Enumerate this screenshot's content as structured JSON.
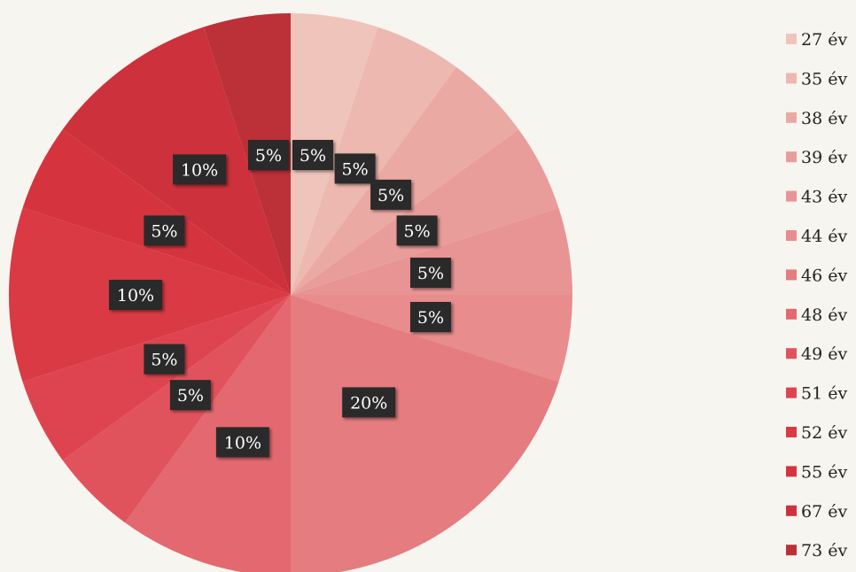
{
  "chart_data": {
    "type": "pie",
    "categories": [
      "27 év",
      "35 év",
      "38 év",
      "39 év",
      "43 év",
      "44 év",
      "46 év",
      "48 év",
      "49 év",
      "51 év",
      "52 év",
      "55 év",
      "67 év",
      "73 év"
    ],
    "values": [
      5,
      5,
      5,
      5,
      5,
      5,
      20,
      10,
      5,
      5,
      10,
      5,
      10,
      5
    ],
    "labels": [
      "5%",
      "5%",
      "5%",
      "5%",
      "5%",
      "5%",
      "20%",
      "10%",
      "5%",
      "5%",
      "10%",
      "5%",
      "10%",
      "5%"
    ],
    "colors": [
      "#efc4bb",
      "#edb8af",
      "#eba9a3",
      "#e99d9a",
      "#e89494",
      "#e88c8d",
      "#e57c80",
      "#e4686f",
      "#e1535c",
      "#de4450",
      "#d93a44",
      "#d5343f",
      "#cd313b",
      "#bc3038"
    ],
    "legend_position": "right",
    "start_angle": "top, clockwise"
  }
}
